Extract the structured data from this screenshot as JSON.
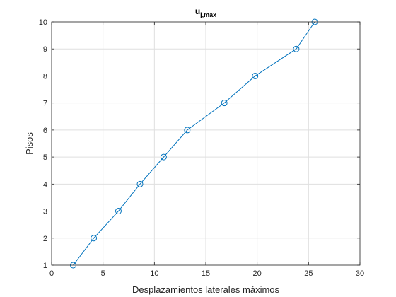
{
  "chart_data": {
    "type": "line",
    "title": "u",
    "title_subscript": "j,max",
    "xlabel": "Desplazamientos laterales máximos",
    "ylabel": "Pisos",
    "xlim": [
      0,
      30
    ],
    "ylim": [
      1,
      10
    ],
    "xticks": [
      "0",
      "5",
      "10",
      "15",
      "20",
      "25",
      "30"
    ],
    "yticks": [
      "1",
      "2",
      "3",
      "4",
      "5",
      "6",
      "7",
      "8",
      "9",
      "10"
    ],
    "grid": true,
    "marker": "circle",
    "series_color": "#0072BD",
    "series": [
      {
        "x": [
          2.1,
          4.1,
          6.5,
          8.6,
          10.9,
          13.2,
          16.8,
          19.8,
          23.8,
          25.6
        ],
        "y": [
          1,
          2,
          3,
          4,
          5,
          6,
          7,
          8,
          9,
          10
        ]
      }
    ]
  }
}
